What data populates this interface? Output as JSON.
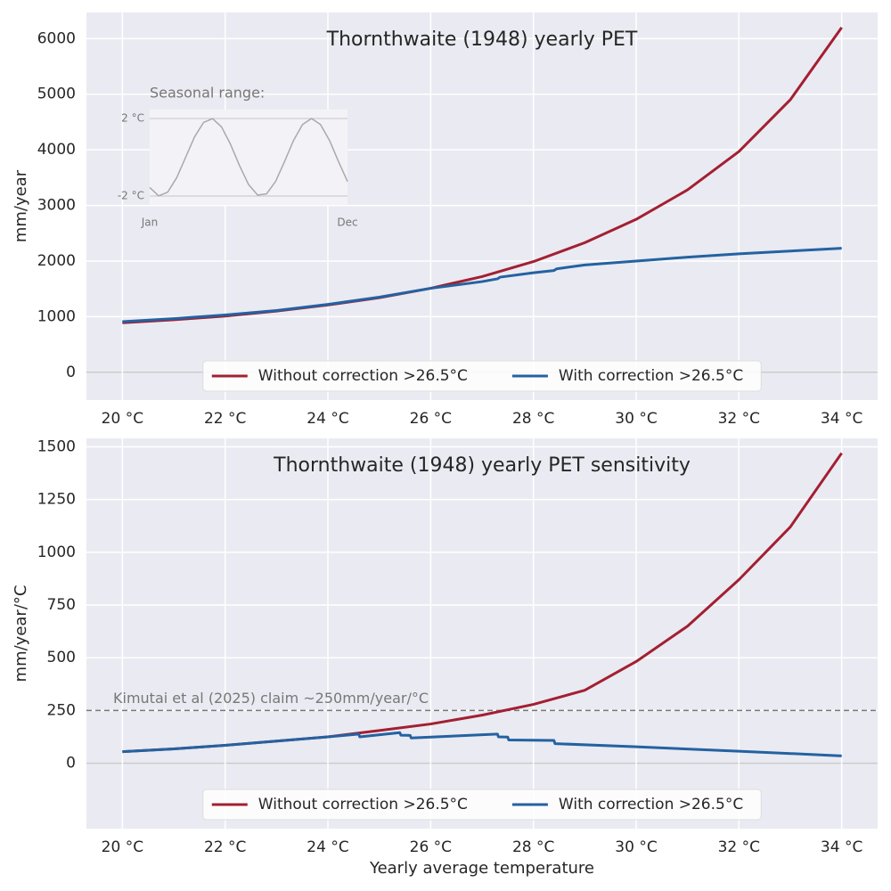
{
  "chart_data": [
    {
      "type": "line",
      "title": "Thornthwaite (1948) yearly PET",
      "ylabel": "mm/year",
      "xlim": [
        19.3,
        34.7
      ],
      "ylim": [
        -500,
        6470
      ],
      "xticks": [
        {
          "value": 20,
          "label": "20 °C"
        },
        {
          "value": 22,
          "label": "22 °C"
        },
        {
          "value": 24,
          "label": "24 °C"
        },
        {
          "value": 26,
          "label": "26 °C"
        },
        {
          "value": 28,
          "label": "28 °C"
        },
        {
          "value": 30,
          "label": "30 °C"
        },
        {
          "value": 32,
          "label": "32 °C"
        },
        {
          "value": 34,
          "label": "34 °C"
        }
      ],
      "yticks": [
        0,
        1000,
        2000,
        3000,
        4000,
        5000,
        6000
      ],
      "grid": true,
      "legend": "lower center",
      "series": [
        {
          "name": "Without correction >26.5°C",
          "color": "#a31f32",
          "x": [
            20,
            21,
            22,
            23,
            24,
            25,
            26,
            27,
            28,
            29,
            30,
            31,
            32,
            33,
            34
          ],
          "values": [
            890,
            945,
            1010,
            1100,
            1210,
            1340,
            1510,
            1720,
            1990,
            2330,
            2750,
            3280,
            3970,
            4900,
            6200
          ]
        },
        {
          "name": "With correction >26.5°C",
          "color": "#2462a1",
          "x": [
            20,
            21,
            22,
            23,
            24,
            25,
            26,
            27,
            27.3,
            27.35,
            28,
            28.4,
            28.45,
            29,
            30,
            31,
            32,
            33,
            34
          ],
          "values": [
            910,
            965,
            1030,
            1110,
            1220,
            1350,
            1510,
            1630,
            1680,
            1710,
            1790,
            1830,
            1860,
            1930,
            2000,
            2070,
            2130,
            2180,
            2230
          ]
        }
      ]
    },
    {
      "type": "line",
      "title": "Thornthwaite (1948) yearly PET sensitivity",
      "ylabel": "mm/year/°C",
      "xlabel": "Yearly average temperature",
      "xlim": [
        19.3,
        34.7
      ],
      "ylim": [
        -310,
        1540
      ],
      "xticks": [
        {
          "value": 20,
          "label": "20 °C"
        },
        {
          "value": 22,
          "label": "22 °C"
        },
        {
          "value": 24,
          "label": "24 °C"
        },
        {
          "value": 26,
          "label": "26 °C"
        },
        {
          "value": 28,
          "label": "28 °C"
        },
        {
          "value": 30,
          "label": "30 °C"
        },
        {
          "value": 32,
          "label": "32 °C"
        },
        {
          "value": 34,
          "label": "34 °C"
        }
      ],
      "yticks": [
        0,
        250,
        500,
        750,
        1000,
        1250,
        1500
      ],
      "grid": true,
      "legend": "lower center",
      "hline": {
        "value": 250,
        "label": "Kimutai et al (2025) claim ~250mm/year/°C"
      },
      "series": [
        {
          "name": "Without correction >26.5°C",
          "color": "#a31f32",
          "x": [
            20,
            21,
            22,
            23,
            24,
            25,
            26,
            27,
            28,
            29,
            30,
            31,
            32,
            33,
            34
          ],
          "values": [
            55,
            68,
            85,
            105,
            125,
            155,
            186,
            228,
            279,
            346,
            482,
            650,
            870,
            1120,
            1470
          ]
        },
        {
          "name": "With correction >26.5°C",
          "color": "#2462a1",
          "x": [
            20,
            21,
            22,
            23,
            24,
            24.6,
            24.62,
            25.4,
            25.42,
            25.6,
            25.62,
            27.3,
            27.32,
            27.5,
            27.52,
            28.4,
            28.42,
            30,
            32,
            34
          ],
          "values": [
            55,
            68,
            85,
            105,
            125,
            138,
            125,
            145,
            133,
            132,
            120,
            138,
            125,
            124,
            110,
            108,
            93,
            78,
            57,
            35
          ]
        }
      ]
    },
    {
      "type": "line",
      "title": "Seasonal range:",
      "xlim": [
        0,
        11
      ],
      "ylim": [
        -2.46,
        2.46
      ],
      "xticks": [
        {
          "value": 0,
          "label": "Jan"
        },
        {
          "value": 11,
          "label": "Dec"
        }
      ],
      "yticks": [
        {
          "value": 2,
          "label": "2 °C"
        },
        {
          "value": -2,
          "label": "-2 °C"
        }
      ],
      "grid": "y",
      "series": [
        {
          "color": "#a8a8ae",
          "x": [
            0,
            0.5,
            1,
            1.5,
            2,
            2.5,
            3,
            3.5,
            4,
            4.5,
            5,
            5.5,
            6,
            6.5,
            7,
            7.5,
            8,
            8.5,
            9,
            9.5,
            10,
            10.5,
            11
          ],
          "values": [
            -1.56,
            -1.99,
            -1.8,
            -1.06,
            0,
            1.06,
            1.8,
            1.99,
            1.56,
            0.66,
            -0.44,
            -1.41,
            -1.95,
            -1.89,
            -1.25,
            -0.22,
            0.87,
            1.69,
            2.0,
            1.69,
            0.87,
            -0.22,
            -1.25
          ]
        }
      ]
    }
  ]
}
